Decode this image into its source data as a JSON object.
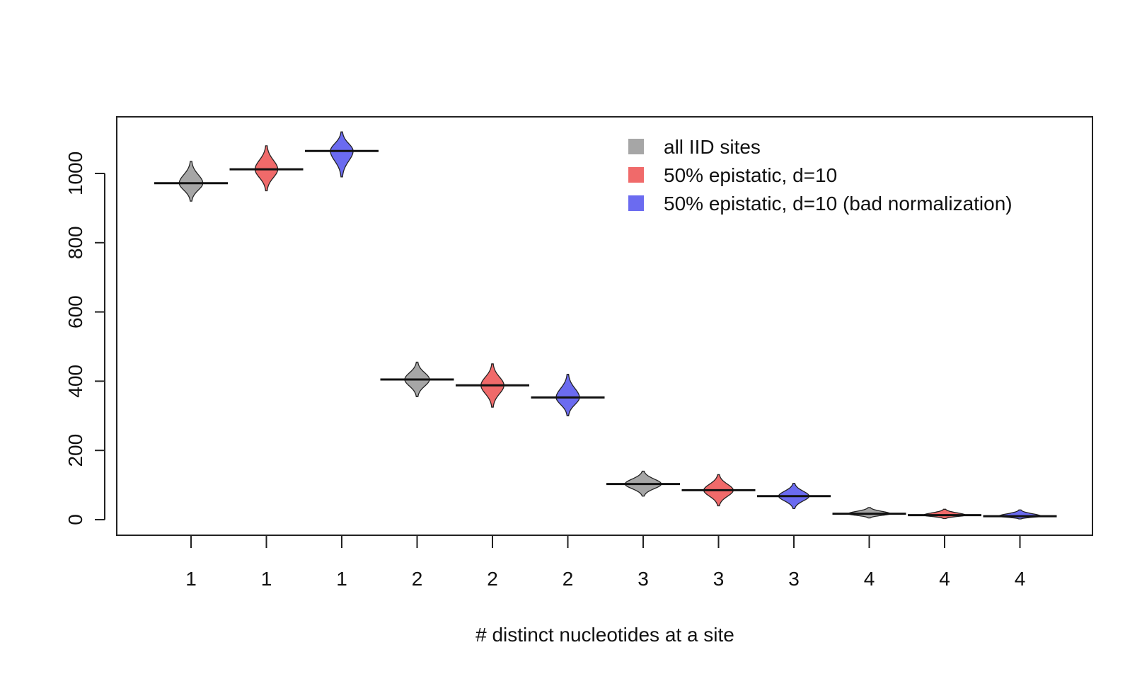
{
  "chart_data": {
    "type": "violin",
    "title": "",
    "xlabel": "# distinct nucleotides at a site",
    "ylabel": "",
    "ylim": [
      -45,
      1165
    ],
    "yticks": [
      0,
      200,
      400,
      600,
      800,
      1000
    ],
    "grid": false,
    "legend_position": "top-right",
    "categories": [
      "1",
      "1",
      "1",
      "2",
      "2",
      "2",
      "3",
      "3",
      "3",
      "4",
      "4",
      "4"
    ],
    "series": [
      {
        "name": "all IID sites",
        "color": "#a6a6a6",
        "positions": [
          1,
          4,
          7,
          10
        ],
        "center": [
          972,
          405,
          103,
          17
        ],
        "min": [
          920,
          355,
          68,
          5
        ],
        "max": [
          1035,
          455,
          140,
          35
        ],
        "width": [
          0.2,
          0.2,
          0.5,
          0.5
        ]
      },
      {
        "name": "50% epistatic, d=10",
        "color": "#f06a6a",
        "positions": [
          2,
          5,
          8,
          11
        ],
        "center": [
          1012,
          388,
          85,
          13
        ],
        "min": [
          950,
          325,
          40,
          3
        ],
        "max": [
          1080,
          450,
          130,
          30
        ],
        "width": [
          0.2,
          0.2,
          0.35,
          0.5
        ]
      },
      {
        "name": "50% epistatic, d=10 (bad normalization)",
        "color": "#6b6bf0",
        "positions": [
          3,
          6,
          9,
          12
        ],
        "center": [
          1065,
          353,
          68,
          10
        ],
        "min": [
          990,
          300,
          32,
          2
        ],
        "max": [
          1120,
          420,
          105,
          28
        ],
        "width": [
          0.2,
          0.2,
          0.3,
          0.5
        ]
      }
    ]
  }
}
